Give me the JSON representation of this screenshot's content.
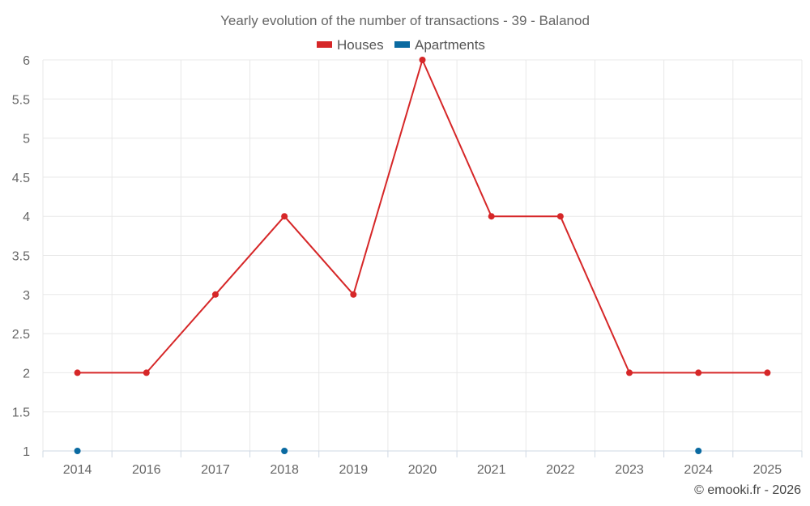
{
  "chart_data": {
    "type": "line",
    "title": "Yearly evolution of the number of transactions - 39 - Balanod",
    "categories": [
      "2014",
      "2016",
      "2017",
      "2018",
      "2019",
      "2020",
      "2021",
      "2022",
      "2023",
      "2024",
      "2025"
    ],
    "series": [
      {
        "name": "Houses",
        "color": "#d62728",
        "values": [
          2,
          2,
          3,
          4,
          3,
          6,
          4,
          4,
          2,
          2,
          2
        ]
      },
      {
        "name": "Apartments",
        "color": "#0a6aa1",
        "values": [
          1,
          null,
          null,
          1,
          null,
          null,
          null,
          null,
          null,
          1,
          null
        ]
      }
    ],
    "ylim": [
      1,
      6
    ],
    "yticks": [
      "1",
      "1.5",
      "2",
      "2.5",
      "3",
      "3.5",
      "4",
      "4.5",
      "5",
      "5.5",
      "6"
    ],
    "xlabel": "",
    "ylabel": "",
    "grid": true,
    "legend": "top-center"
  },
  "credit": "© emooki.fr - 2026"
}
